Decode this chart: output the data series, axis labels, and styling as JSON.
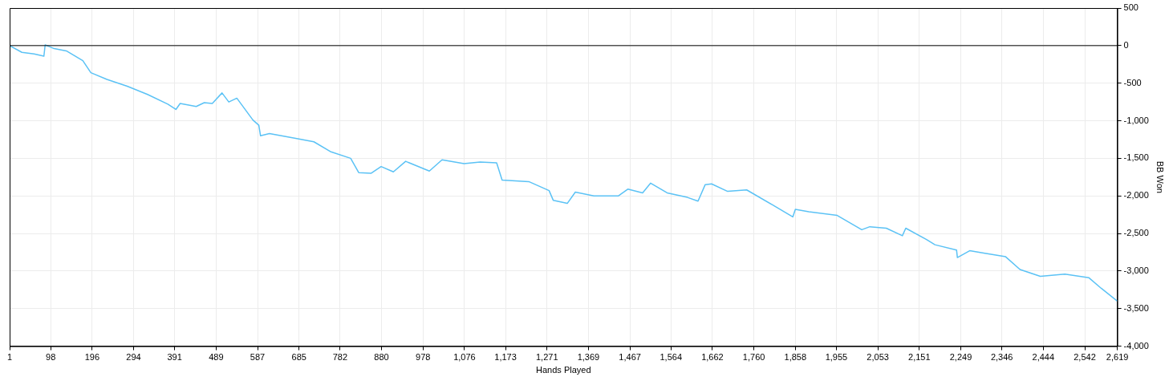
{
  "chart_data": {
    "type": "line",
    "xlabel": "Hands Played",
    "ylabel": "BB Won",
    "xlim": [
      1,
      2619
    ],
    "xticks": [
      1,
      98,
      196,
      294,
      391,
      489,
      587,
      685,
      782,
      880,
      978,
      {
        "value": 1076,
        "label": "1,076"
      },
      {
        "value": 1173,
        "label": "1,173"
      },
      {
        "value": 1271,
        "label": "1,271"
      },
      {
        "value": 1369,
        "label": "1,369"
      },
      {
        "value": 1467,
        "label": "1,467"
      },
      {
        "value": 1564,
        "label": "1,564"
      },
      {
        "value": 1662,
        "label": "1,662"
      },
      {
        "value": 1760,
        "label": "1,760"
      },
      {
        "value": 1858,
        "label": "1,858"
      },
      {
        "value": 1955,
        "label": "1,955"
      },
      {
        "value": 2053,
        "label": "2,053"
      },
      {
        "value": 2151,
        "label": "2,151"
      },
      {
        "value": 2249,
        "label": "2,249"
      },
      {
        "value": 2346,
        "label": "2,346"
      },
      {
        "value": 2444,
        "label": "2,444"
      },
      {
        "value": 2542,
        "label": "2,542"
      },
      {
        "value": 2619,
        "label": "2,619"
      }
    ],
    "ylim": [
      -4000,
      500
    ],
    "yticks": [
      {
        "value": -4000,
        "label": "-4,000"
      },
      {
        "value": -3500,
        "label": "-3,500"
      },
      {
        "value": -3000,
        "label": "-3,000"
      },
      {
        "value": -2500,
        "label": "-2,500"
      },
      {
        "value": -2000,
        "label": "-2,000"
      },
      {
        "value": -1500,
        "label": "-1,500"
      },
      {
        "value": -1000,
        "label": "-1,000"
      },
      -500,
      0,
      500
    ],
    "grid": true,
    "legend": false,
    "marker": "none",
    "line_style": "solid",
    "ref_lines": [
      {
        "axis": "y",
        "value": 0,
        "color": "#000000"
      }
    ],
    "series": [
      {
        "color": "#5bc2f5",
        "x": [
          1,
          30,
          59,
          82,
          85,
          106,
          135,
          174,
          193,
          231,
          279,
          327,
          375,
          394,
          404,
          442,
          461,
          480,
          503,
          519,
          538,
          576,
          590,
          594,
          615,
          672,
          720,
          759,
          807,
          826,
          855,
          879,
          908,
          937,
          993,
          1023,
          1075,
          1113,
          1152,
          1165,
          1228,
          1276,
          1286,
          1319,
          1338,
          1382,
          1440,
          1462,
          1497,
          1516,
          1555,
          1603,
          1628,
          1645,
          1660,
          1698,
          1743,
          1804,
          1852,
          1858,
          1890,
          1957,
          2015,
          2034,
          2073,
          2111,
          2119,
          2168,
          2188,
          2239,
          2241,
          2270,
          2303,
          2355,
          2389,
          2437,
          2495,
          2552,
          2581,
          2619
        ],
        "values": [
          0,
          -90,
          -110,
          -140,
          10,
          -40,
          -70,
          -200,
          -360,
          -450,
          -540,
          -650,
          -780,
          -850,
          -770,
          -810,
          -760,
          -770,
          -630,
          -750,
          -700,
          -990,
          -1060,
          -1200,
          -1170,
          -1230,
          -1280,
          -1410,
          -1500,
          -1690,
          -1700,
          -1610,
          -1680,
          -1540,
          -1670,
          -1520,
          -1570,
          -1550,
          -1560,
          -1790,
          -1810,
          -1930,
          -2060,
          -2100,
          -1950,
          -2000,
          -2000,
          -1910,
          -1960,
          -1830,
          -1960,
          -2020,
          -2070,
          -1850,
          -1840,
          -1940,
          -1920,
          -2120,
          -2280,
          -2180,
          -2210,
          -2260,
          -2450,
          -2410,
          -2430,
          -2530,
          -2430,
          -2580,
          -2650,
          -2720,
          -2820,
          -2730,
          -2760,
          -2810,
          -2980,
          -3070,
          -3040,
          -3090,
          -3230,
          -3400
        ]
      }
    ]
  }
}
